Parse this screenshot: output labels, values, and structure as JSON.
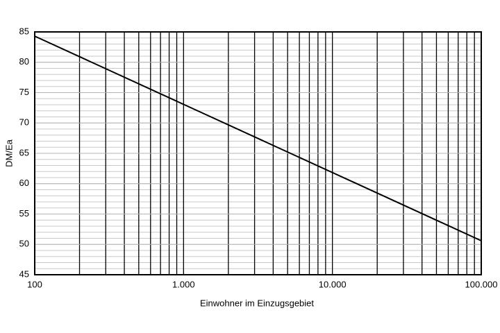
{
  "chart_data": {
    "type": "line",
    "xlabel": "Einwohner im Einzugsgebiet",
    "ylabel": "DM/Ea",
    "x": [
      100,
      100000
    ],
    "series": [
      {
        "values": [
          84.3,
          50.6
        ],
        "color": "#000000"
      }
    ],
    "xlim": [
      100,
      100000
    ],
    "ylim": [
      45,
      85
    ],
    "xticks": [
      100,
      {
        "value": 1000,
        "label": "1.000"
      },
      {
        "value": 10000,
        "label": "10.000"
      },
      {
        "value": 100000,
        "label": "100.000"
      }
    ],
    "yticks": [
      45,
      50,
      55,
      60,
      65,
      70,
      75,
      80,
      85
    ],
    "x_log": true,
    "grid": true
  }
}
